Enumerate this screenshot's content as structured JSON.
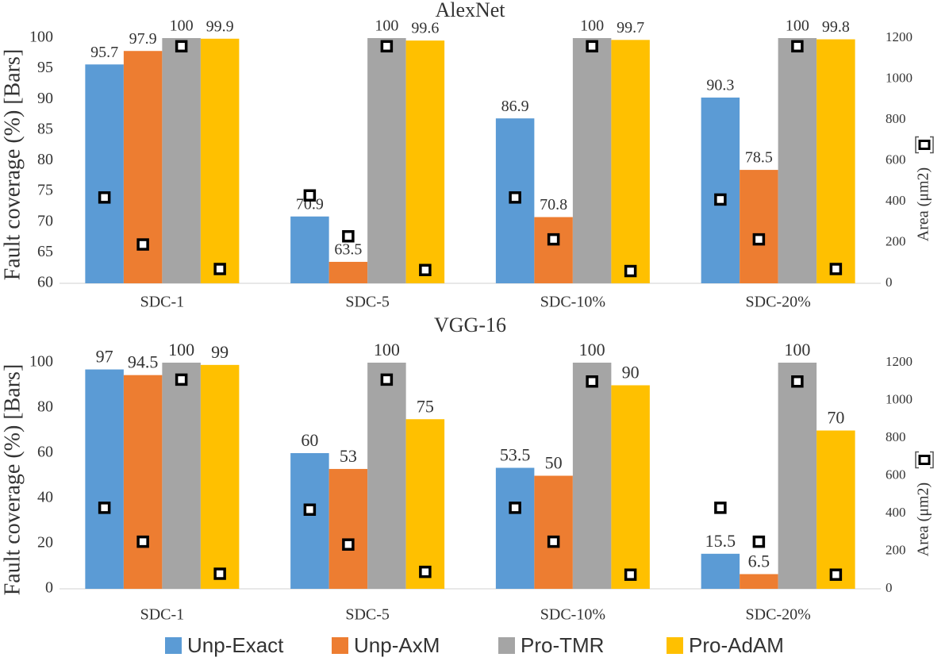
{
  "chart_data": [
    {
      "type": "bar",
      "title": "AlexNet",
      "y_label": "Fault coverage (%) [Bars]",
      "y2_label": "Area (μm2)",
      "categories": [
        "SDC-1",
        "SDC-5",
        "SDC-10%",
        "SDC-20%"
      ],
      "ylim": [
        60,
        100
      ],
      "yticks": [
        60,
        65,
        70,
        75,
        80,
        85,
        90,
        95,
        100
      ],
      "y2lim": [
        0,
        1200
      ],
      "y2ticks": [
        0,
        200,
        400,
        600,
        800,
        1000,
        1200
      ],
      "series": [
        {
          "name": "Unp-Exact",
          "color": "#5b9bd5",
          "values": [
            95.7,
            70.9,
            86.9,
            90.3
          ]
        },
        {
          "name": "Unp-AxM",
          "color": "#ed7d31",
          "values": [
            97.9,
            63.5,
            70.8,
            78.5
          ]
        },
        {
          "name": "Pro-TMR",
          "color": "#a5a5a5",
          "values": [
            100,
            100,
            100,
            100
          ]
        },
        {
          "name": "Pro-AdAM",
          "color": "#ffc000",
          "values": [
            99.9,
            99.6,
            99.7,
            99.8
          ]
        }
      ],
      "area_series": [
        {
          "axis": "y2",
          "marker_color": "#000000",
          "values": [
            420,
            430,
            420,
            410
          ]
        },
        {
          "axis": "y2",
          "marker_color": "#000000",
          "values": [
            190,
            230,
            215,
            215
          ]
        },
        {
          "axis": "y2",
          "marker_color": "#000000",
          "values": [
            1160,
            1160,
            1160,
            1160
          ]
        },
        {
          "axis": "y2",
          "marker_color": "#000000",
          "values": [
            70,
            65,
            60,
            70
          ]
        }
      ]
    },
    {
      "type": "bar",
      "title": "VGG-16",
      "y_label": "Fault coverage (%) [Bars]",
      "y2_label": "Area (μm2)",
      "categories": [
        "SDC-1",
        "SDC-5",
        "SDC-10%",
        "SDC-20%"
      ],
      "ylim": [
        0,
        100
      ],
      "yticks": [
        0,
        20,
        40,
        60,
        80,
        100
      ],
      "y2lim": [
        0,
        1200
      ],
      "y2ticks": [
        0,
        200,
        400,
        600,
        800,
        1000,
        1200
      ],
      "legend": "bottom",
      "series": [
        {
          "name": "Unp-Exact",
          "color": "#5b9bd5",
          "values": [
            97,
            60,
            53.5,
            15.5
          ]
        },
        {
          "name": "Unp-AxM",
          "color": "#ed7d31",
          "values": [
            94.5,
            53,
            50,
            6.5
          ]
        },
        {
          "name": "Pro-TMR",
          "color": "#a5a5a5",
          "values": [
            100,
            100,
            100,
            100
          ]
        },
        {
          "name": "Pro-AdAM",
          "color": "#ffc000",
          "values": [
            99,
            75,
            90,
            70
          ]
        }
      ],
      "area_series": [
        {
          "axis": "y2",
          "marker_color": "#000000",
          "values": [
            430,
            420,
            430,
            430
          ]
        },
        {
          "axis": "y2",
          "marker_color": "#000000",
          "values": [
            250,
            235,
            250,
            250
          ]
        },
        {
          "axis": "y2",
          "marker_color": "#000000",
          "values": [
            1110,
            1110,
            1100,
            1100
          ]
        },
        {
          "axis": "y2",
          "marker_color": "#000000",
          "values": [
            80,
            90,
            75,
            75
          ]
        }
      ]
    }
  ]
}
